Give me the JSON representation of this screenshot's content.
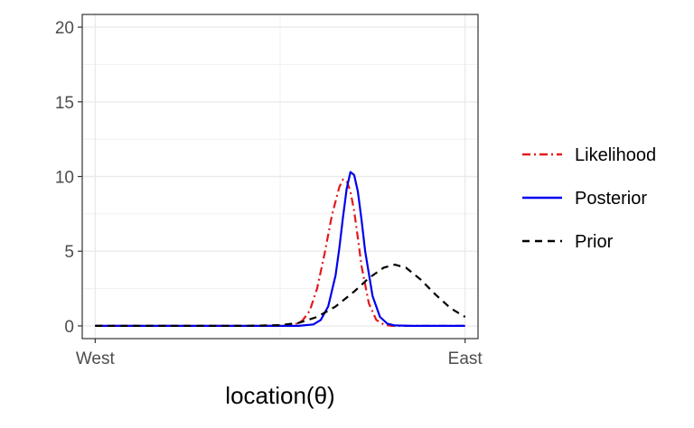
{
  "chart_data": {
    "type": "line",
    "xlabel": "location(θ)",
    "ylabel": "",
    "x_ticks": [
      {
        "value": 0,
        "label": "West"
      },
      {
        "value": 1,
        "label": "East"
      }
    ],
    "y_ticks": [
      0,
      5,
      10,
      15,
      20
    ],
    "xlim": [
      -0.035,
      1.035
    ],
    "ylim": [
      -0.85,
      20.85
    ],
    "grid": true,
    "legend_position": "right",
    "series": [
      {
        "name": "Likelihood",
        "color": "#e41a1c",
        "dash": "dotdash",
        "x": [
          0.0,
          0.5,
          0.54,
          0.56,
          0.58,
          0.6,
          0.62,
          0.64,
          0.66,
          0.67,
          0.68,
          0.69,
          0.7,
          0.71,
          0.72,
          0.74,
          0.76,
          0.78,
          0.8,
          1.0
        ],
        "y": [
          0,
          0,
          0.1,
          0.35,
          1.0,
          2.5,
          4.8,
          7.4,
          9.3,
          9.8,
          9.7,
          9.0,
          7.7,
          5.9,
          4.0,
          1.5,
          0.4,
          0.1,
          0,
          0
        ]
      },
      {
        "name": "Posterior",
        "color": "#0000ee",
        "dash": "solid",
        "x": [
          0.0,
          0.55,
          0.59,
          0.61,
          0.63,
          0.65,
          0.66,
          0.67,
          0.68,
          0.69,
          0.7,
          0.71,
          0.72,
          0.73,
          0.75,
          0.77,
          0.79,
          0.81,
          0.85,
          1.0
        ],
        "y": [
          0,
          0,
          0.1,
          0.4,
          1.3,
          3.4,
          5.2,
          7.3,
          9.2,
          10.3,
          10.1,
          9.0,
          7.1,
          5.0,
          2.0,
          0.6,
          0.15,
          0.03,
          0,
          0
        ]
      },
      {
        "name": "Prior",
        "color": "#000000",
        "dash": "dashed",
        "x": [
          0.0,
          0.4,
          0.5,
          0.55,
          0.6,
          0.65,
          0.7,
          0.74,
          0.78,
          0.81,
          0.84,
          0.88,
          0.92,
          0.96,
          1.0
        ],
        "y": [
          0,
          0,
          0.05,
          0.2,
          0.6,
          1.3,
          2.3,
          3.2,
          3.9,
          4.1,
          3.9,
          3.1,
          2.1,
          1.2,
          0.6
        ]
      }
    ]
  }
}
